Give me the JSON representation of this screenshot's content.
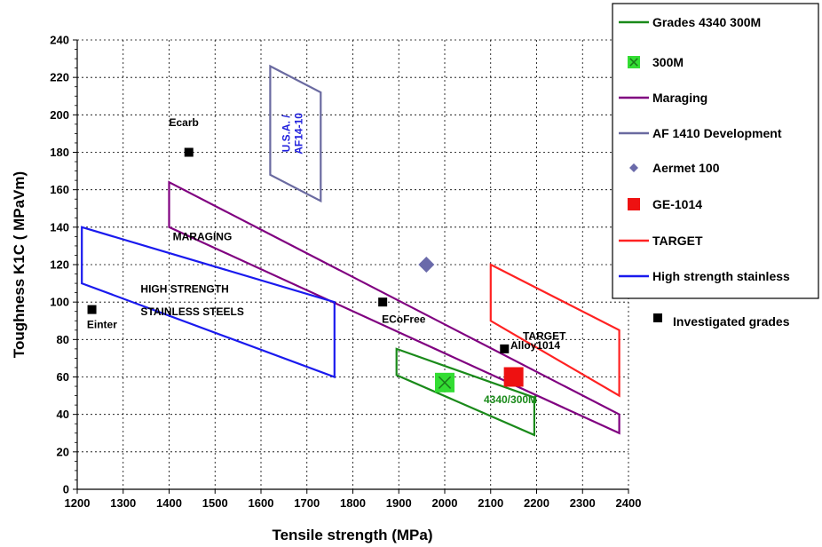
{
  "chart_data": {
    "type": "scatter",
    "xlabel": "Tensile strength (MPa)",
    "ylabel": "Toughness K1C ( MPaVm)",
    "xlim": [
      1200,
      2400
    ],
    "ylim": [
      0,
      240
    ],
    "x_ticks": [
      1200,
      1300,
      1400,
      1500,
      1600,
      1700,
      1800,
      1900,
      2000,
      2100,
      2200,
      2300,
      2400
    ],
    "y_ticks": [
      0,
      20,
      40,
      60,
      80,
      100,
      120,
      140,
      160,
      180,
      200,
      220,
      240
    ],
    "grid": true,
    "legend_position": "right",
    "series": [
      {
        "name": "Grades 4340 300M",
        "kind": "region",
        "color": "#1a8a1a",
        "polygon": [
          [
            1895,
            75
          ],
          [
            2195,
            49
          ],
          [
            2195,
            29
          ],
          [
            1895,
            61
          ]
        ]
      },
      {
        "name": "300M",
        "kind": "marker",
        "marker": "square-cross",
        "color": "#33dd33",
        "points": [
          [
            2000,
            57
          ]
        ]
      },
      {
        "name": "Maraging",
        "kind": "region",
        "color": "#800080",
        "polygon": [
          [
            1400,
            164
          ],
          [
            2380,
            40
          ],
          [
            2380,
            30
          ],
          [
            1400,
            140
          ]
        ]
      },
      {
        "name": "AF 1410 Development",
        "kind": "region",
        "color": "#6a6aa0",
        "polygon": [
          [
            1620,
            226
          ],
          [
            1730,
            212
          ],
          [
            1730,
            154
          ],
          [
            1620,
            168
          ]
        ]
      },
      {
        "name": "Aermet 100",
        "kind": "marker",
        "marker": "diamond",
        "color": "#6a6aaa",
        "points": [
          [
            1960,
            120
          ]
        ]
      },
      {
        "name": "GE-1014",
        "kind": "marker",
        "marker": "square",
        "color": "#ee1111",
        "points": [
          [
            2150,
            60
          ]
        ]
      },
      {
        "name": "TARGET",
        "kind": "region",
        "color": "#ff2222",
        "polygon": [
          [
            2100,
            120
          ],
          [
            2380,
            85
          ],
          [
            2380,
            50
          ],
          [
            2100,
            90
          ]
        ]
      },
      {
        "name": "High strength stainless",
        "kind": "region",
        "color": "#1a1aee",
        "polygon": [
          [
            1210,
            140
          ],
          [
            1760,
            100
          ],
          [
            1760,
            60
          ],
          [
            1210,
            110
          ]
        ]
      },
      {
        "name": "Investigated grades",
        "kind": "marker",
        "marker": "square",
        "color": "#000000",
        "points": [
          [
            1443,
            180
          ],
          [
            1232,
            96
          ],
          [
            1865,
            100
          ],
          [
            2130,
            75
          ]
        ]
      }
    ],
    "annotations": [
      {
        "text": "Ecarb",
        "x": 1400,
        "y": 194,
        "color": "#000000"
      },
      {
        "text": "Einter",
        "x": 1221,
        "y": 86,
        "color": "#000000"
      },
      {
        "text": "ECoFree",
        "x": 1863,
        "y": 89,
        "color": "#000000"
      },
      {
        "text": "Alloy1014",
        "x": 2143,
        "y": 75,
        "color": "#000000"
      },
      {
        "text": "MARAGING",
        "x": 1408,
        "y": 133,
        "color": "#000000"
      },
      {
        "text": "HIGH STRENGTH",
        "x": 1338,
        "y": 105,
        "color": "#000000",
        "size": "large"
      },
      {
        "text": "STAINLESS STEELS",
        "x": 1338,
        "y": 93,
        "color": "#000000",
        "size": "large"
      },
      {
        "text": "TARGET",
        "x": 2170,
        "y": 80,
        "color": "#000000",
        "size": "xlarge"
      },
      {
        "text": "4340/300M",
        "x": 2085,
        "y": 46,
        "color": "#1a8a1a"
      },
      {
        "text": "U.S.A. /",
        "x": 1663,
        "y": 190,
        "color": "#2222dd",
        "rotate": -90
      },
      {
        "text": "AF14-10",
        "x": 1690,
        "y": 190,
        "color": "#2222dd",
        "rotate": -90
      }
    ]
  }
}
